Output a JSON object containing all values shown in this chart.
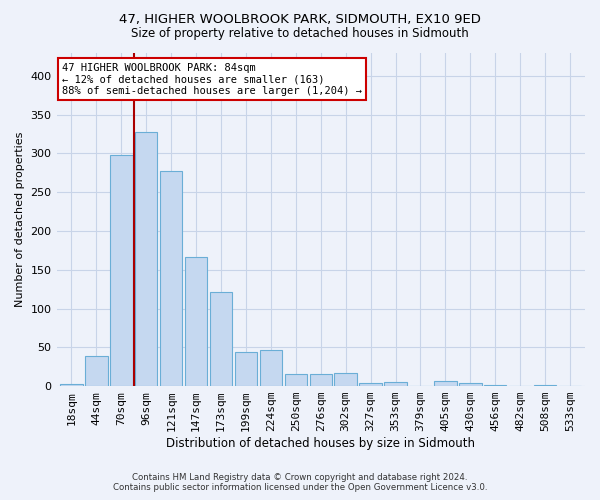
{
  "title1": "47, HIGHER WOOLBROOK PARK, SIDMOUTH, EX10 9ED",
  "title2": "Size of property relative to detached houses in Sidmouth",
  "xlabel": "Distribution of detached houses by size in Sidmouth",
  "ylabel": "Number of detached properties",
  "categories": [
    "18sqm",
    "44sqm",
    "70sqm",
    "96sqm",
    "121sqm",
    "147sqm",
    "173sqm",
    "199sqm",
    "224sqm",
    "250sqm",
    "276sqm",
    "302sqm",
    "327sqm",
    "353sqm",
    "379sqm",
    "405sqm",
    "430sqm",
    "456sqm",
    "482sqm",
    "508sqm",
    "533sqm"
  ],
  "values": [
    3,
    39,
    298,
    328,
    277,
    167,
    121,
    44,
    46,
    15,
    16,
    17,
    4,
    5,
    0,
    6,
    4,
    2,
    0,
    2,
    0
  ],
  "bar_color": "#c5d8f0",
  "bar_edge_color": "#6aaed6",
  "vline_x_index": 3,
  "vline_color": "#aa0000",
  "annotation_lines": [
    "47 HIGHER WOOLBROOK PARK: 84sqm",
    "← 12% of detached houses are smaller (163)",
    "88% of semi-detached houses are larger (1,204) →"
  ],
  "annotation_box_color": "#ffffff",
  "annotation_box_edge": "#cc0000",
  "ylim": [
    0,
    430
  ],
  "yticks": [
    0,
    50,
    100,
    150,
    200,
    250,
    300,
    350,
    400
  ],
  "footer1": "Contains HM Land Registry data © Crown copyright and database right 2024.",
  "footer2": "Contains public sector information licensed under the Open Government Licence v3.0.",
  "bg_color": "#eef2fa",
  "grid_color": "#c8d4e8"
}
